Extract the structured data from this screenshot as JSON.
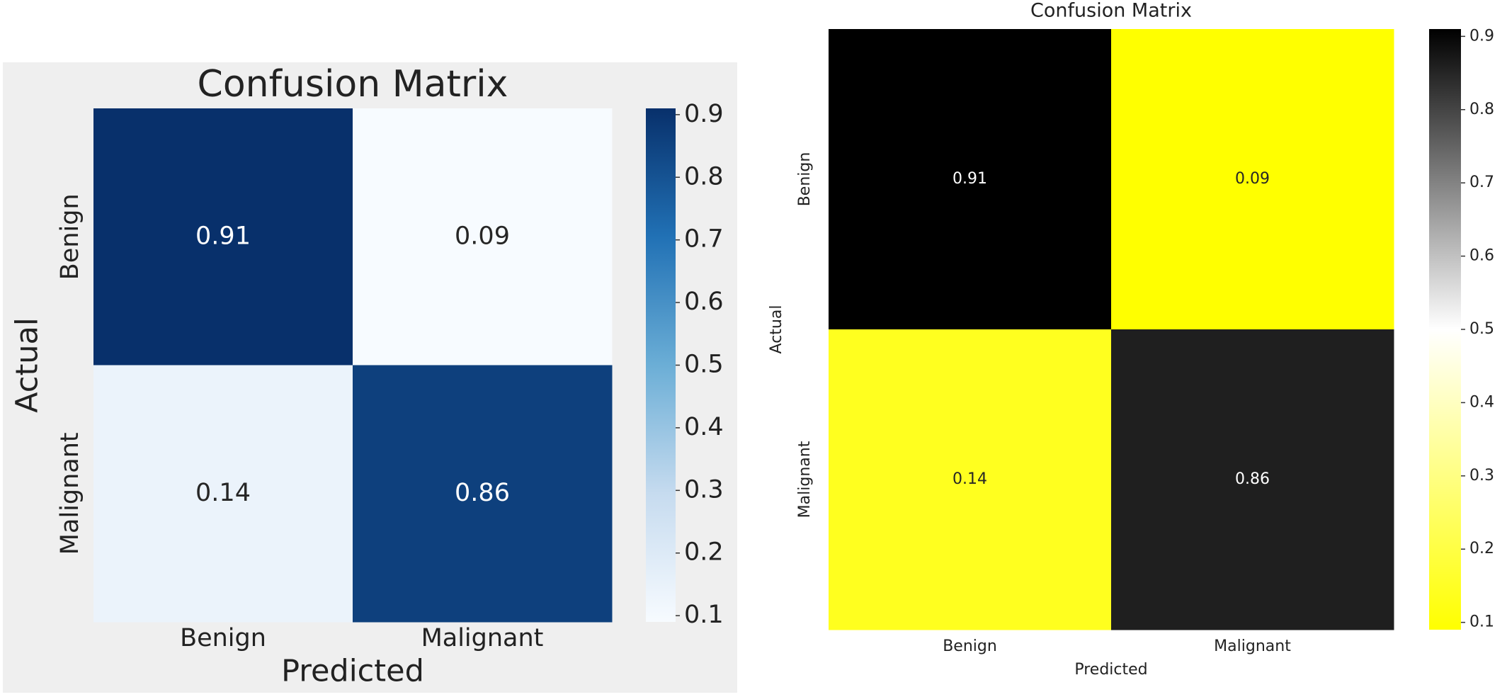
{
  "chart_data": [
    {
      "type": "heatmap",
      "title": "Confusion Matrix",
      "xlabel": "Predicted",
      "ylabel": "Actual",
      "x": [
        "Benign",
        "Malignant"
      ],
      "y": [
        "Benign",
        "Malignant"
      ],
      "values": [
        [
          0.91,
          0.09
        ],
        [
          0.14,
          0.86
        ]
      ],
      "zlim": [
        0.09,
        0.91
      ],
      "zticks": [
        0.1,
        0.2,
        0.3,
        0.4,
        0.5,
        0.6,
        0.7,
        0.8,
        0.9
      ],
      "colors": [
        "#f7fbff",
        "#c6dbef",
        "#6baed6",
        "#2171b5",
        "#08306b"
      ]
    },
    {
      "type": "heatmap",
      "title": "Confusion Matrix",
      "xlabel": "Predicted",
      "ylabel": "Actual",
      "x": [
        "Benign",
        "Malignant"
      ],
      "y": [
        "Benign",
        "Malignant"
      ],
      "values": [
        [
          0.91,
          0.09
        ],
        [
          0.14,
          0.86
        ]
      ],
      "zlim": [
        0.09,
        0.91
      ],
      "zticks": [
        0.1,
        0.2,
        0.3,
        0.4,
        0.5,
        0.6,
        0.7,
        0.8,
        0.9
      ],
      "colors": [
        "#ffff00",
        "#ffffff",
        "#000000"
      ]
    }
  ]
}
